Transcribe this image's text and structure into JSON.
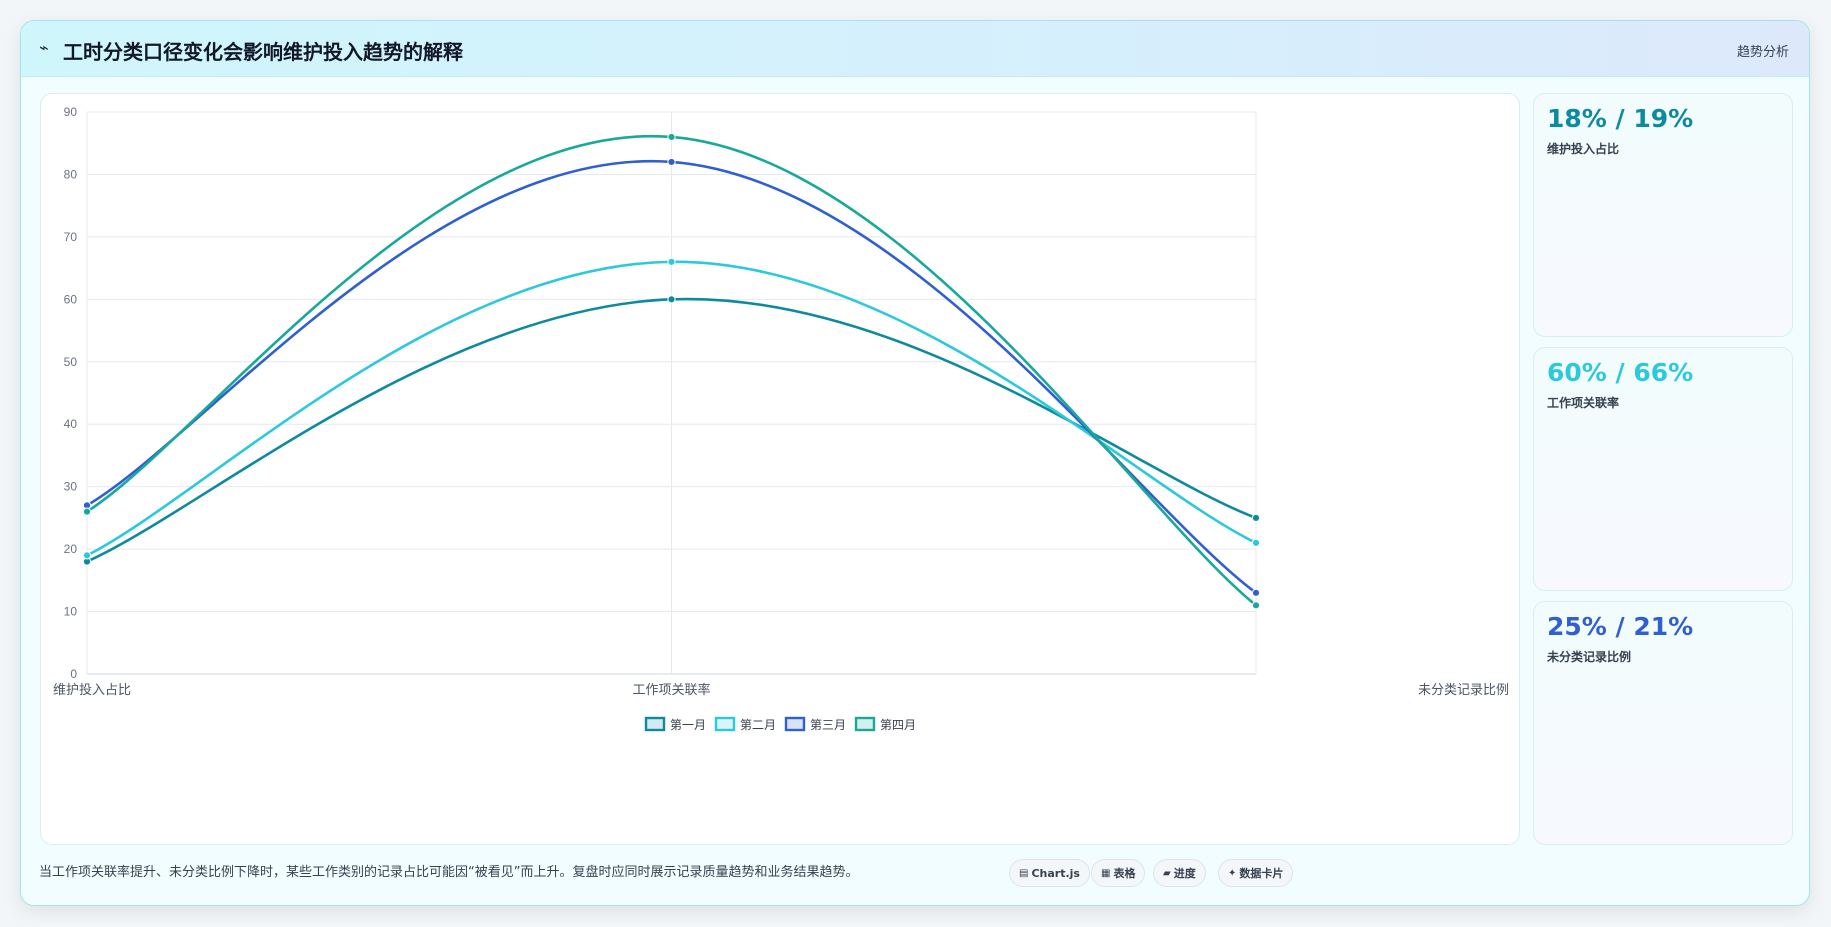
{
  "header": {
    "icon": "line-chart-icon",
    "icon_glyph": "⌁",
    "title": "工时分类口径变化会影响维护投入趋势的解释",
    "tag": "趋势分析"
  },
  "chart_data": {
    "type": "line",
    "categories": [
      "维护投入占比",
      "工作项关联率",
      "未分类记录比例"
    ],
    "series": [
      {
        "name": "第一月",
        "values": [
          18,
          60,
          25
        ],
        "color": "#0e8a9e"
      },
      {
        "name": "第二月",
        "values": [
          19,
          66,
          21
        ],
        "color": "#2cc9dd"
      },
      {
        "name": "第三月",
        "values": [
          27,
          82,
          13
        ],
        "color": "#2f5fd1"
      },
      {
        "name": "第四月",
        "values": [
          26,
          86,
          11
        ],
        "color": "#1aa89a"
      }
    ],
    "ylim": [
      0,
      90
    ],
    "yticks": [
      0,
      10,
      20,
      30,
      40,
      50,
      60,
      70,
      80,
      90
    ],
    "grid": true,
    "legend": "bottom",
    "title": "",
    "xlabel": "",
    "ylabel": ""
  },
  "kpis": [
    {
      "value": "18% / 19%",
      "label": "维护投入占比",
      "color": "#0e8a9e"
    },
    {
      "value": "60% / 66%",
      "label": "工作项关联率",
      "color": "#2cc9dd"
    },
    {
      "value": "25% / 21%",
      "label": "未分类记录比例",
      "color": "#2f5fd1"
    }
  ],
  "footnote": "当工作项关联率提升、未分类比例下降时，某些工作类别的记录占比可能因“被看见”而上升。复盘时应同时展示记录质量趋势和业务结果趋势。",
  "pills": [
    {
      "icon": "chart-icon",
      "glyph": "▤",
      "label": "Chart.js"
    },
    {
      "icon": "table-icon",
      "glyph": "▦",
      "label": "表格"
    },
    {
      "icon": "progress-icon",
      "glyph": "▰",
      "label": "进度"
    },
    {
      "icon": "card-icon",
      "glyph": "✦",
      "label": "数据卡片"
    }
  ]
}
